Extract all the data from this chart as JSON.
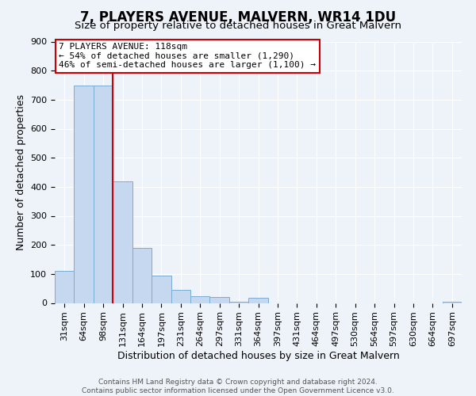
{
  "title": "7, PLAYERS AVENUE, MALVERN, WR14 1DU",
  "subtitle": "Size of property relative to detached houses in Great Malvern",
  "xlabel": "Distribution of detached houses by size in Great Malvern",
  "ylabel": "Number of detached properties",
  "bar_labels": [
    "31sqm",
    "64sqm",
    "98sqm",
    "131sqm",
    "164sqm",
    "197sqm",
    "231sqm",
    "264sqm",
    "297sqm",
    "331sqm",
    "364sqm",
    "397sqm",
    "431sqm",
    "464sqm",
    "497sqm",
    "530sqm",
    "564sqm",
    "597sqm",
    "630sqm",
    "664sqm",
    "697sqm"
  ],
  "bar_values": [
    110,
    750,
    750,
    420,
    190,
    93,
    45,
    22,
    20,
    5,
    18,
    0,
    0,
    0,
    0,
    0,
    0,
    0,
    0,
    0,
    5
  ],
  "bar_color": "#c5d8f0",
  "bar_edgecolor": "#7aadd4",
  "ylim": [
    0,
    900
  ],
  "yticks": [
    0,
    100,
    200,
    300,
    400,
    500,
    600,
    700,
    800,
    900
  ],
  "property_line_x": 2.5,
  "property_line_color": "#cc0000",
  "annotation_title": "7 PLAYERS AVENUE: 118sqm",
  "annotation_line1": "← 54% of detached houses are smaller (1,290)",
  "annotation_line2": "46% of semi-detached houses are larger (1,100) →",
  "footer_line1": "Contains HM Land Registry data © Crown copyright and database right 2024.",
  "footer_line2": "Contains public sector information licensed under the Open Government Licence v3.0.",
  "background_color": "#eef2f9",
  "plot_background": "#eef2f9",
  "title_fontsize": 12,
  "subtitle_fontsize": 9.5,
  "axis_label_fontsize": 9,
  "tick_fontsize": 8,
  "footer_fontsize": 6.5
}
